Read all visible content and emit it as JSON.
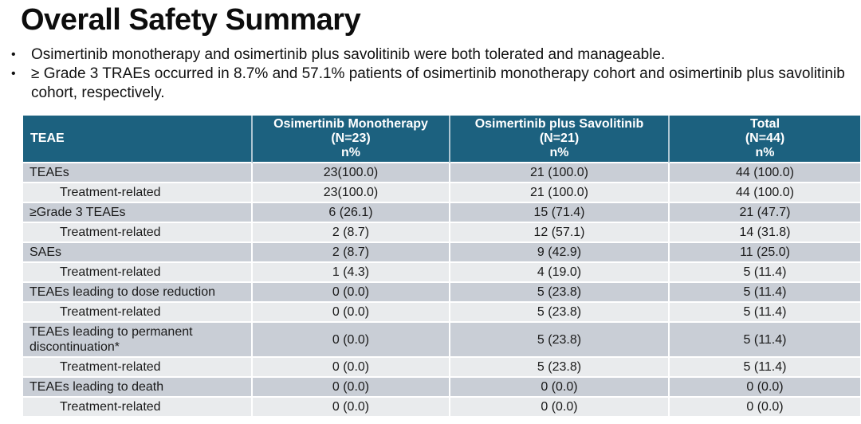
{
  "slide": {
    "title": "Overall Safety Summary",
    "bullets": [
      "Osimertinib monotherapy and osimertinib plus savolitinib were both tolerated and manageable.",
      "≥ Grade 3 TRAEs occurred in 8.7% and 57.1% patients of osimertinib monotherapy cohort and osimertinib plus savolitinib cohort, respectively."
    ]
  },
  "table": {
    "header": {
      "teae": "TEAE",
      "monotherapy": "Osimertinib Monotherapy\n(N=23)\nn%",
      "combination": "Osimertinib plus Savolitinib\n(N=21)\nn%",
      "total": "Total\n(N=44)\nn%"
    },
    "rows": [
      {
        "label": "TEAEs",
        "mono": "23(100.0)",
        "combo": "21 (100.0)",
        "total": "44 (100.0)"
      },
      {
        "label": "Treatment-related",
        "mono": "23(100.0)",
        "combo": "21 (100.0)",
        "total": "44 (100.0)"
      },
      {
        "label": "≥Grade 3 TEAEs",
        "mono": "6 (26.1)",
        "combo": "15 (71.4)",
        "total": "21 (47.7)"
      },
      {
        "label": "Treatment-related",
        "mono": "2 (8.7)",
        "combo": "12 (57.1)",
        "total": "14 (31.8)"
      },
      {
        "label": "SAEs",
        "mono": "2 (8.7)",
        "combo": "9 (42.9)",
        "total": "11 (25.0)"
      },
      {
        "label": "Treatment-related",
        "mono": "1 (4.3)",
        "combo": "4 (19.0)",
        "total": "5 (11.4)"
      },
      {
        "label": "TEAEs leading to dose reduction",
        "mono": "0 (0.0)",
        "combo": "5 (23.8)",
        "total": "5 (11.4)"
      },
      {
        "label": "Treatment-related",
        "mono": "0 (0.0)",
        "combo": "5 (23.8)",
        "total": "5 (11.4)"
      },
      {
        "label": "TEAEs leading to permanent discontinuation*",
        "mono": "0 (0.0)",
        "combo": "5 (23.8)",
        "total": "5 (11.4)"
      },
      {
        "label": "Treatment-related",
        "mono": "0 (0.0)",
        "combo": "5 (23.8)",
        "total": "5 (11.4)"
      },
      {
        "label": "TEAEs leading to death",
        "mono": "0 (0.0)",
        "combo": "0 (0.0)",
        "total": "0 (0.0)"
      },
      {
        "label": "Treatment-related",
        "mono": "0 (0.0)",
        "combo": "0 (0.0)",
        "total": "0 (0.0)"
      }
    ],
    "colors": {
      "header_bg": "#1c617f",
      "header_text": "#ffffff",
      "row_dark": "#c9ced6",
      "row_light": "#e9ebed",
      "separator": "#ffffff",
      "body_text": "#1a1a1a"
    }
  }
}
